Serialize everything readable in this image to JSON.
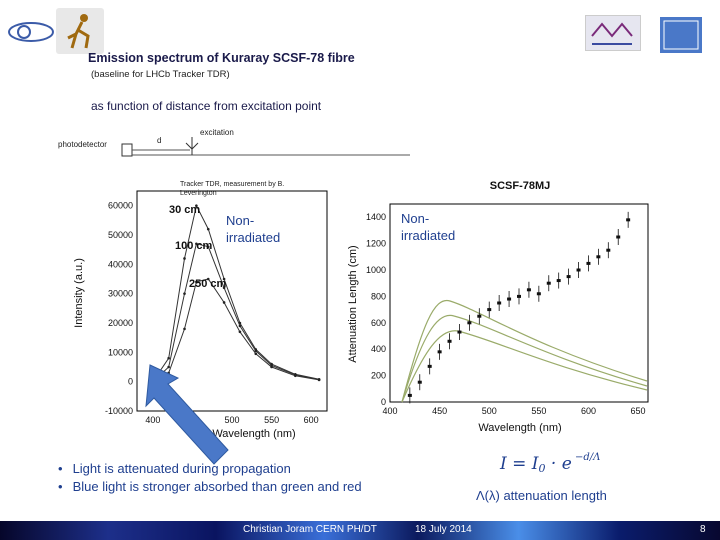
{
  "slide": {
    "title": "Emission spectrum of Kuraray SCSF-78 fibre",
    "subtitle": "(baseline for LHCb Tracker TDR)",
    "heading2": "as function of distance from excitation point"
  },
  "diagram": {
    "photodetector_label": "photodetector",
    "distance_label": "d",
    "excitation_label": "excitation",
    "credit": [
      "Tracker TDR, measurement by B.",
      "Leverington"
    ]
  },
  "chart_data": [
    {
      "type": "line",
      "xlabel": "Wavelength (nm)",
      "ylabel": "Intensity (a.u.)",
      "y_ticks": [
        "60000",
        "50000",
        "40000",
        "30000",
        "20000",
        "10000",
        "0",
        "-10000"
      ],
      "x_ticks": [
        "400",
        "450",
        "500",
        "550",
        "600"
      ],
      "xlim": [
        380,
        620
      ],
      "ylim": [
        -10000,
        65000
      ],
      "series": [
        {
          "name": "30 cm",
          "x": [
            400,
            420,
            440,
            455,
            470,
            490,
            510,
            530,
            550,
            580,
            610
          ],
          "values": [
            0,
            8000,
            42000,
            60000,
            52000,
            35000,
            20000,
            11000,
            6000,
            2500,
            800
          ]
        },
        {
          "name": "100 cm",
          "x": [
            400,
            420,
            440,
            455,
            470,
            490,
            510,
            530,
            550,
            580,
            610
          ],
          "values": [
            0,
            5000,
            30000,
            47000,
            46000,
            32000,
            19000,
            10500,
            5500,
            2300,
            700
          ]
        },
        {
          "name": "250 cm",
          "x": [
            400,
            420,
            440,
            455,
            470,
            490,
            510,
            530,
            550,
            580,
            610
          ],
          "values": [
            0,
            3000,
            18000,
            34000,
            35000,
            27000,
            17000,
            9500,
            5000,
            2000,
            600
          ]
        }
      ],
      "annotation": "Non-irradiated",
      "annotation_lines": [
        "Non-",
        "irradiated"
      ]
    },
    {
      "type": "scatter",
      "title": "SCSF-78MJ",
      "xlabel": "Wavelength (nm)",
      "ylabel": "Attenuation Length (cm)",
      "y_ticks": [
        "1400",
        "1200",
        "1000",
        "800",
        "600",
        "400",
        "200",
        "0"
      ],
      "x_ticks": [
        "400",
        "450",
        "500",
        "550",
        "600",
        "650"
      ],
      "xlim": [
        400,
        660
      ],
      "ylim": [
        0,
        1500
      ],
      "series": [
        {
          "name": "attenuation length",
          "x": [
            420,
            430,
            440,
            450,
            460,
            470,
            480,
            490,
            500,
            510,
            520,
            530,
            540,
            550,
            560,
            570,
            580,
            590,
            600,
            610,
            620,
            630,
            640
          ],
          "values": [
            50,
            150,
            270,
            380,
            460,
            530,
            600,
            650,
            700,
            750,
            780,
            800,
            850,
            820,
            900,
            920,
            950,
            1000,
            1050,
            1100,
            1150,
            1250,
            1380
          ]
        }
      ],
      "annotation": "Non-irradiated",
      "annotation_lines": [
        "Non-",
        "irradiated"
      ]
    }
  ],
  "bullets": [
    "Light is attenuated during propagation",
    "Blue light is stronger absorbed than green and red"
  ],
  "formula_caption": "Λ(λ) attenuation length",
  "footer": {
    "author": "Christian Joram   CERN   PH/DT",
    "date": "18 July 2014",
    "page": "8"
  },
  "colors": {
    "title": "#1a1a4a",
    "accent": "#1f3f8f",
    "arrow": "#4a78c8",
    "green_curve": "#9aab6a"
  }
}
